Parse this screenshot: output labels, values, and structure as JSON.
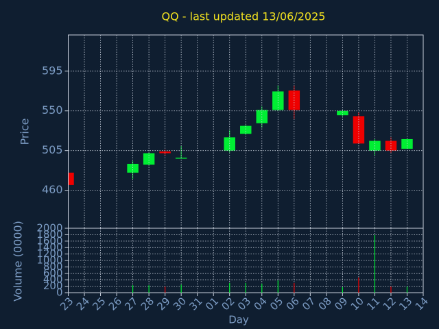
{
  "chart_data": [
    {
      "type": "candlestick",
      "title": "QQ - last updated 13/06/2025",
      "ylabel": "Price",
      "categories": [
        "23",
        "24",
        "25",
        "26",
        "27",
        "28",
        "29",
        "30",
        "31",
        "01",
        "02",
        "03",
        "04",
        "05",
        "06",
        "07",
        "08",
        "09",
        "10",
        "11",
        "12",
        "13",
        "14"
      ],
      "open": [
        480,
        null,
        null,
        null,
        480,
        489,
        504,
        496,
        null,
        null,
        505,
        524,
        536,
        551,
        573,
        null,
        null,
        545,
        544,
        505,
        516,
        507,
        null
      ],
      "high": [
        481,
        null,
        null,
        null,
        493,
        503,
        506,
        510,
        null,
        null,
        528,
        534,
        555,
        579,
        579,
        null,
        null,
        551,
        548,
        518,
        520,
        519,
        null
      ],
      "low": [
        466,
        null,
        null,
        null,
        473,
        488,
        499,
        496,
        null,
        null,
        503,
        523,
        531,
        550,
        541,
        null,
        null,
        544,
        513,
        499,
        502,
        507,
        null
      ],
      "close": [
        466,
        null,
        null,
        null,
        490,
        502,
        502,
        497,
        null,
        null,
        520,
        533,
        551,
        572,
        551,
        null,
        null,
        550,
        513,
        516,
        505,
        518,
        null
      ],
      "up_color": "#00ee33",
      "down_color": "#ee0000",
      "ylim": [
        417,
        636
      ],
      "yticks": [
        460,
        505,
        550,
        595
      ],
      "grid": true
    },
    {
      "type": "bar",
      "xlabel": "Day",
      "ylabel": "Volume (0000)",
      "values": [
        null,
        null,
        null,
        null,
        230,
        230,
        190,
        250,
        null,
        null,
        300,
        300,
        280,
        380,
        300,
        null,
        null,
        170,
        470,
        1790,
        190,
        190,
        null
      ],
      "ylim": [
        0,
        2000
      ],
      "yticks": [
        0,
        200,
        400,
        600,
        800,
        1000,
        1200,
        1400,
        1600,
        1800,
        2000
      ],
      "grid": true
    }
  ]
}
